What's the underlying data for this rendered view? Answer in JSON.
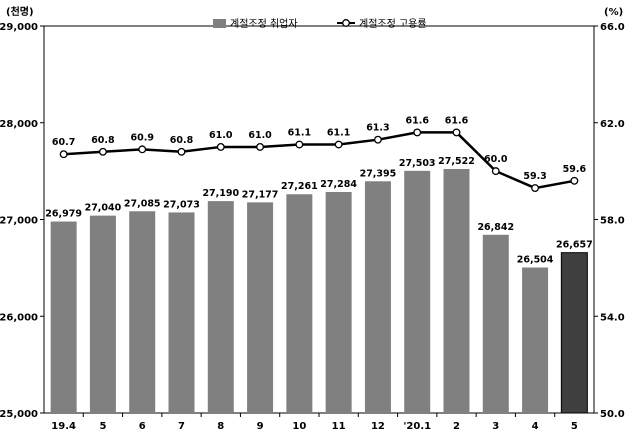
{
  "chart_data": {
    "type": "bar",
    "categories": [
      "19.4",
      "5",
      "6",
      "7",
      "8",
      "9",
      "10",
      "11",
      "12",
      "'20.1",
      "2",
      "3",
      "4",
      "5"
    ],
    "series": [
      {
        "name": "계절조정 취업자",
        "type": "bar",
        "axis": "left",
        "values": [
          26979,
          27040,
          27085,
          27073,
          27190,
          27177,
          27261,
          27284,
          27395,
          27503,
          27522,
          26842,
          26504,
          26657
        ],
        "labels": [
          "26,979",
          "27,040",
          "27,085",
          "27,073",
          "27,190",
          "27,177",
          "27,261",
          "27,284",
          "27,395",
          "27,503",
          "27,522",
          "26,842",
          "26,504",
          "26,657"
        ],
        "color": "#808080",
        "highlight_last_color": "#404040"
      },
      {
        "name": "계절조정 고용률",
        "type": "line",
        "axis": "right",
        "values": [
          60.7,
          60.8,
          60.9,
          60.8,
          61.0,
          61.0,
          61.1,
          61.1,
          61.3,
          61.6,
          61.6,
          60.0,
          59.3,
          59.6
        ],
        "labels": [
          "60.7",
          "60.8",
          "60.9",
          "60.8",
          "61.0",
          "61.0",
          "61.1",
          "61.1",
          "61.3",
          "61.6",
          "61.6",
          "60.0",
          "59.3",
          "59.6"
        ],
        "color": "#000000"
      }
    ],
    "y_left": {
      "unit_label": "(천명)",
      "ylim": [
        25000,
        29000
      ],
      "ticks": [
        "25,000",
        "26,000",
        "27,000",
        "28,000",
        "29,000"
      ]
    },
    "y_right": {
      "unit_label": "(%)",
      "ylim": [
        50.0,
        66.0
      ],
      "ticks": [
        "50.0",
        "54.0",
        "58.0",
        "62.0",
        "66.0"
      ]
    },
    "grid": false,
    "legend_position": "top-center"
  }
}
